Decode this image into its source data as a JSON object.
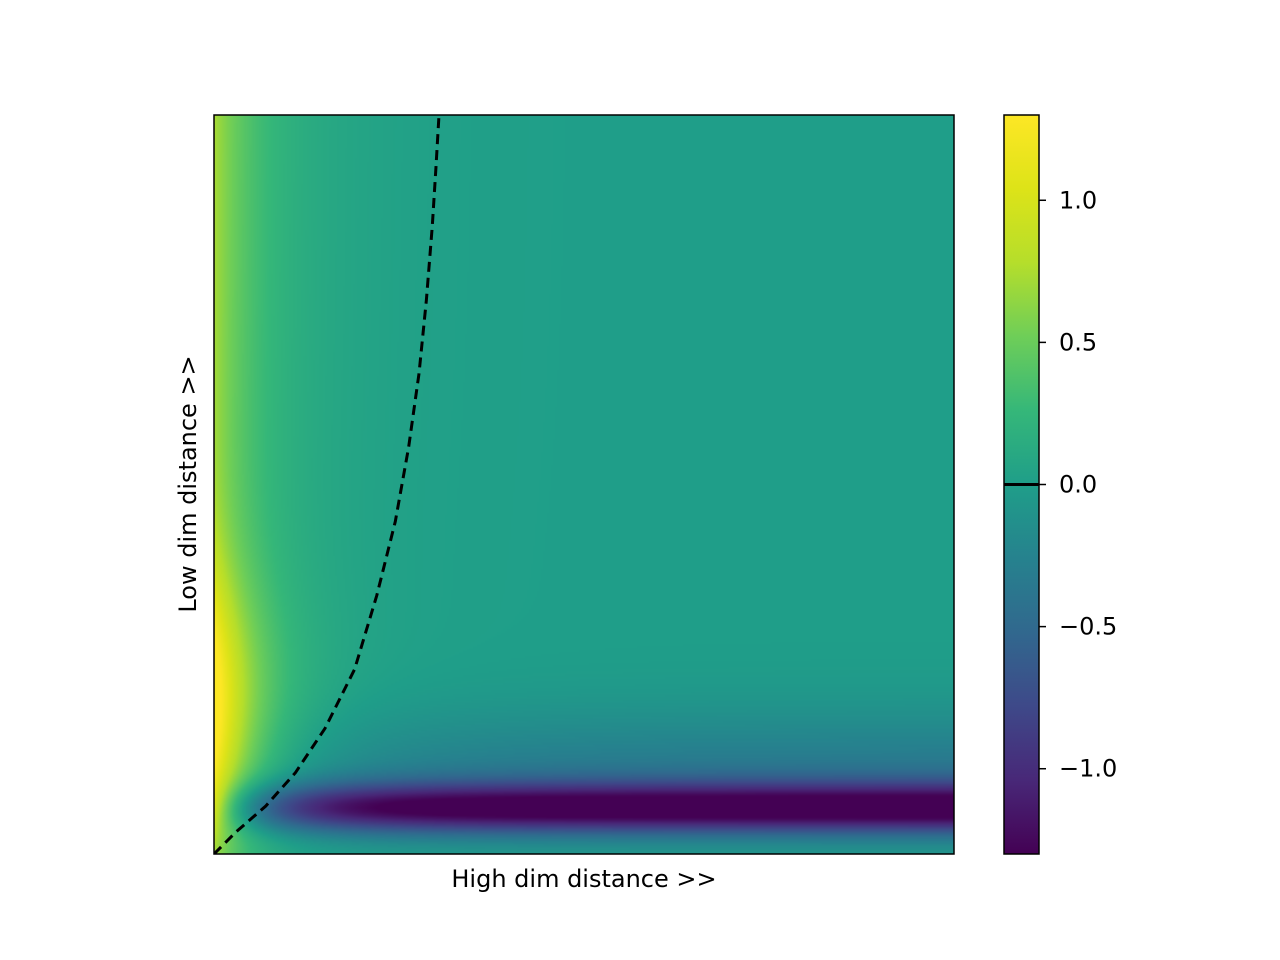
{
  "chart_data": {
    "type": "heatmap",
    "title": "",
    "xlabel": "High dim distance >>",
    "ylabel": "Low dim distance >>",
    "xticks": [],
    "yticks": [],
    "colormap": "viridis",
    "colorbar": {
      "range": [
        -1.3,
        1.3
      ],
      "ticks": [
        1.0,
        0.5,
        0.0,
        -0.5,
        -1.0
      ],
      "tick_labels": [
        "1.0",
        "0.5",
        "0.0",
        "−0.5",
        "−1.0"
      ],
      "marker_line_at": 0.0
    },
    "grid": false,
    "zero_contour": {
      "style": "dashed",
      "color": "#000000",
      "points": [
        {
          "x": 0.0,
          "y": 0.0
        },
        {
          "x": 0.03,
          "y": 0.03
        },
        {
          "x": 0.07,
          "y": 0.065
        },
        {
          "x": 0.11,
          "y": 0.11
        },
        {
          "x": 0.15,
          "y": 0.17
        },
        {
          "x": 0.19,
          "y": 0.25
        },
        {
          "x": 0.22,
          "y": 0.35
        },
        {
          "x": 0.245,
          "y": 0.45
        },
        {
          "x": 0.263,
          "y": 0.55
        },
        {
          "x": 0.277,
          "y": 0.65
        },
        {
          "x": 0.287,
          "y": 0.75
        },
        {
          "x": 0.295,
          "y": 0.85
        },
        {
          "x": 0.3,
          "y": 0.93
        },
        {
          "x": 0.304,
          "y": 1.0
        }
      ]
    }
  }
}
